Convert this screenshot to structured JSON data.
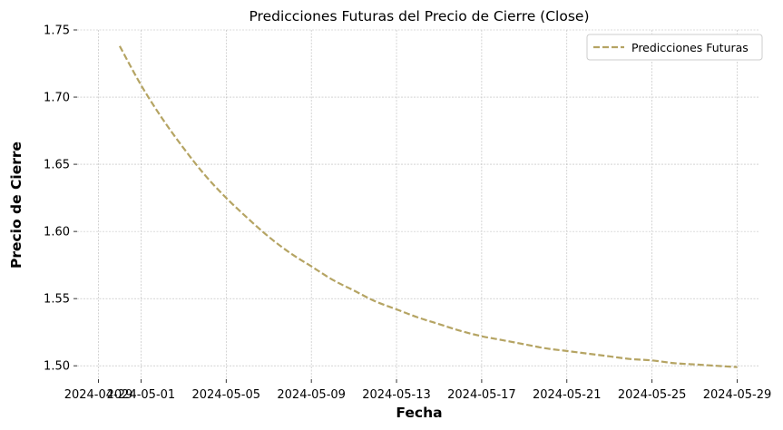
{
  "chart_data": {
    "type": "line",
    "title": "Predicciones Futuras del Precio de Cierre (Close)",
    "xlabel": "Fecha",
    "ylabel": "Precio de Cierre",
    "xlim": [
      "2024-04-28",
      "2024-05-30"
    ],
    "ylim": [
      1.49,
      1.75
    ],
    "x_ticks": [
      "2024-04-29",
      "2024-05-01",
      "2024-05-05",
      "2024-05-09",
      "2024-05-13",
      "2024-05-17",
      "2024-05-21",
      "2024-05-25",
      "2024-05-29"
    ],
    "y_ticks": [
      "1.50",
      "1.55",
      "1.60",
      "1.65",
      "1.70",
      "1.75"
    ],
    "grid": true,
    "legend_position": "top-right",
    "series": [
      {
        "name": "Predicciones Futuras",
        "color": "#b5a463",
        "line_style": "dashed",
        "x": [
          "2024-04-30",
          "2024-05-01",
          "2024-05-02",
          "2024-05-03",
          "2024-05-04",
          "2024-05-05",
          "2024-05-06",
          "2024-05-07",
          "2024-05-08",
          "2024-05-09",
          "2024-05-10",
          "2024-05-11",
          "2024-05-12",
          "2024-05-13",
          "2024-05-14",
          "2024-05-15",
          "2024-05-16",
          "2024-05-17",
          "2024-05-18",
          "2024-05-19",
          "2024-05-20",
          "2024-05-21",
          "2024-05-22",
          "2024-05-23",
          "2024-05-24",
          "2024-05-25",
          "2024-05-26",
          "2024-05-27",
          "2024-05-28",
          "2024-05-29"
        ],
        "values": [
          1.738,
          1.709,
          1.684,
          1.662,
          1.642,
          1.625,
          1.61,
          1.596,
          1.584,
          1.574,
          1.564,
          1.556,
          1.548,
          1.542,
          1.536,
          1.531,
          1.526,
          1.522,
          1.519,
          1.516,
          1.513,
          1.511,
          1.509,
          1.507,
          1.505,
          1.504,
          1.502,
          1.501,
          1.5,
          1.499
        ]
      }
    ]
  }
}
